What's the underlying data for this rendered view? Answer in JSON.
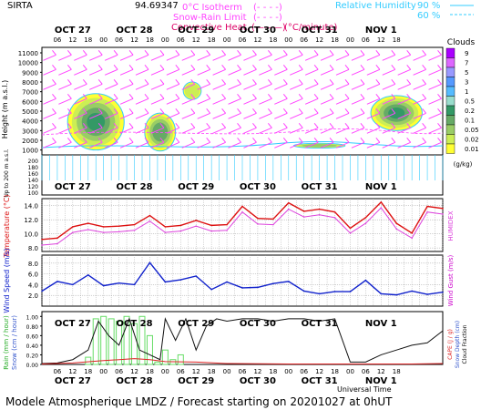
{
  "header": {
    "station": "SIRTA",
    "station_coord": "94.69347",
    "legend_left": [
      {
        "label": "0°C Isotherm",
        "sample": "(- - - -)",
        "color": "#ff44ff"
      },
      {
        "label": "Snow-Rain Limit",
        "sample": "(- - - -)",
        "color": "#ff44ff"
      },
      {
        "label": "Convective Heat.",
        "sample": "(———)",
        "unit": "(°C/minute)",
        "color": "#dd0066"
      }
    ],
    "legend_right": [
      {
        "label": "Relative Humidity",
        "value": "90 %",
        "color": "#33ccff"
      },
      {
        "value": "60 %",
        "color": "#33ccff"
      }
    ]
  },
  "footer": {
    "title": "Modele Atmospherique LMDZ / Forecast starting on 20201027 at 0hUT",
    "xaxis_label": "Universal Time"
  },
  "colors": {
    "temperature": "#dd1111",
    "humidex": "#dd44dd",
    "wind_speed": "#1122cc",
    "rain_bar": "#66dd66",
    "snow_depth": "#111111",
    "cape": "#dd2222",
    "rh_contour": "#33ccff",
    "wind_barb": "#ff44ff"
  },
  "chart_data": [
    {
      "panel": "clouds",
      "type": "heatmap",
      "ylabel": "Height (m a.s.l.)",
      "ylabel_lower": "Up to 200 m a.s.l.",
      "colorbar_title": "Clouds",
      "colorbar_unit": "(g/kg)",
      "colorbar_ticks": [
        "9",
        "7",
        "5",
        "3",
        "1",
        "0.5",
        "0.2",
        "0.1",
        "0.05",
        "0.02",
        "0.01"
      ],
      "colorbar_colors": [
        "#aa00ff",
        "#dd66ff",
        "#9999ff",
        "#5599ff",
        "#55bbff",
        "#99ddcc",
        "#339966",
        "#66aa66",
        "#99cc66",
        "#ccee55",
        "#ffff33"
      ],
      "yticks_upper": [
        "11000",
        "10000",
        "9000",
        "8000",
        "7000",
        "6000",
        "5000",
        "4000",
        "3000",
        "2000",
        "1000"
      ],
      "yticks_lower": [
        "200",
        "180",
        "160",
        "140",
        "120",
        "100"
      ],
      "days": [
        "OCT 27",
        "OCT 28",
        "OCT 29",
        "OCT 30",
        "OCT 31",
        "NOV 1"
      ],
      "hours": [
        "06",
        "12",
        "18",
        "00"
      ],
      "cloud_blobs": [
        {
          "t_start": 10,
          "t_end": 32,
          "h_low": 1000,
          "h_high": 6800,
          "max": 2
        },
        {
          "t_start": 40,
          "t_end": 52,
          "h_low": 900,
          "h_high": 4800,
          "max": 0.3
        },
        {
          "t_start": 98,
          "t_end": 118,
          "h_low": 1200,
          "h_high": 1700,
          "max": 0.1
        },
        {
          "t_start": 55,
          "t_end": 62,
          "h_low": 6200,
          "h_high": 8000,
          "max": 0.05
        },
        {
          "t_start": 128,
          "t_end": 148,
          "h_low": 3000,
          "h_high": 6600,
          "max": 1
        }
      ]
    },
    {
      "panel": "temperature",
      "type": "line",
      "ylabel": "Temperature (°C)",
      "ylabel_right": "HUMIDEX",
      "yticks": [
        "14.0",
        "12.0",
        "10.0",
        "8.0"
      ],
      "ylim": [
        7.5,
        15
      ],
      "series": [
        {
          "name": "Temperature",
          "x": [
            0,
            6,
            12,
            18,
            24,
            30,
            36,
            42,
            48,
            54,
            60,
            66,
            72,
            78,
            84,
            90,
            96,
            102,
            108,
            114,
            120,
            126,
            132,
            138,
            144,
            150,
            156
          ],
          "values": [
            9.2,
            9.4,
            11.0,
            11.5,
            11.0,
            11.1,
            11.3,
            12.6,
            11.0,
            11.2,
            11.9,
            11.2,
            11.3,
            13.9,
            12.2,
            12.1,
            14.4,
            13.2,
            13.5,
            13.1,
            10.8,
            12.3,
            14.5,
            11.5,
            10.1,
            13.9,
            13.6
          ]
        },
        {
          "name": "HUMIDEX",
          "x": [
            0,
            6,
            12,
            18,
            24,
            30,
            36,
            42,
            48,
            54,
            60,
            66,
            72,
            78,
            84,
            90,
            96,
            102,
            108,
            114,
            120,
            126,
            132,
            138,
            144,
            150,
            156
          ],
          "values": [
            8.4,
            8.6,
            10.2,
            10.6,
            10.2,
            10.3,
            10.5,
            11.8,
            10.2,
            10.4,
            11.1,
            10.4,
            10.5,
            13.1,
            11.4,
            11.3,
            13.5,
            12.4,
            12.7,
            12.3,
            10.1,
            11.5,
            13.7,
            10.7,
            9.4,
            13.1,
            12.8
          ]
        }
      ]
    },
    {
      "panel": "wind",
      "type": "line",
      "ylabel": "Wind Speed (m/s)",
      "ylabel_right": "Wind Gust (m/s)",
      "yticks": [
        "8.0",
        "6.0",
        "4.0",
        "2.0"
      ],
      "ylim": [
        0,
        9.5
      ],
      "series": [
        {
          "name": "Wind Speed",
          "x": [
            0,
            6,
            12,
            18,
            24,
            30,
            36,
            42,
            48,
            54,
            60,
            66,
            72,
            78,
            84,
            90,
            96,
            102,
            108,
            114,
            120,
            126,
            132,
            138,
            144,
            150,
            156
          ],
          "values": [
            2.8,
            4.6,
            4.0,
            5.8,
            3.8,
            4.3,
            4.0,
            8.1,
            4.5,
            4.9,
            5.6,
            3.1,
            4.5,
            3.4,
            3.5,
            4.2,
            4.6,
            2.8,
            2.3,
            2.7,
            2.7,
            4.8,
            2.3,
            2.1,
            2.8,
            2.2,
            2.6
          ]
        }
      ]
    },
    {
      "panel": "precip",
      "type": "bar",
      "ylabel_left": "Rain (mm / hour)",
      "ylabel_left2": "Snow (cm / hour)",
      "ylabel_right": "CAPE (J / g)",
      "ylabel_right2": "Snow Depth (cm)",
      "ylabel_right3": "Cloud Fraction",
      "yticks": [
        "1.00",
        "0.80",
        "0.60",
        "0.40",
        "0.20",
        "0.00"
      ],
      "ylim": [
        0,
        1.1
      ],
      "rain": {
        "x": [
          18,
          21,
          24,
          27,
          30,
          33,
          36,
          39,
          42,
          45,
          48,
          51,
          54
        ],
        "values": [
          0.15,
          0.95,
          1.0,
          0.95,
          0.9,
          1.0,
          0.85,
          1.0,
          0.6,
          0.05,
          0.3,
          0.1,
          0.2
        ]
      },
      "series": [
        {
          "name": "Cloud Fraction",
          "x": [
            0,
            6,
            12,
            18,
            22,
            26,
            30,
            34,
            38,
            42,
            46,
            48,
            52,
            56,
            60,
            64,
            68,
            72,
            78,
            84,
            90,
            96,
            102,
            108,
            114,
            120,
            126,
            132,
            138,
            144,
            150,
            156
          ],
          "values": [
            0.02,
            0.03,
            0.1,
            0.3,
            0.9,
            0.6,
            0.4,
            0.95,
            0.3,
            0.2,
            0.1,
            0.95,
            0.5,
            0.95,
            0.3,
            0.8,
            0.95,
            0.9,
            0.95,
            0.95,
            0.9,
            0.95,
            0.95,
            0.9,
            0.95,
            0.05,
            0.05,
            0.2,
            0.3,
            0.4,
            0.45,
            0.7
          ]
        },
        {
          "name": "CAPE",
          "x": [
            0,
            12,
            24,
            36,
            42,
            48,
            60,
            72,
            96,
            120,
            132,
            144,
            156
          ],
          "values": [
            0.01,
            0.03,
            0.08,
            0.12,
            0.1,
            0.06,
            0.05,
            0.02,
            0.01,
            0.01,
            0.01,
            0.01,
            0.02
          ]
        }
      ]
    }
  ]
}
